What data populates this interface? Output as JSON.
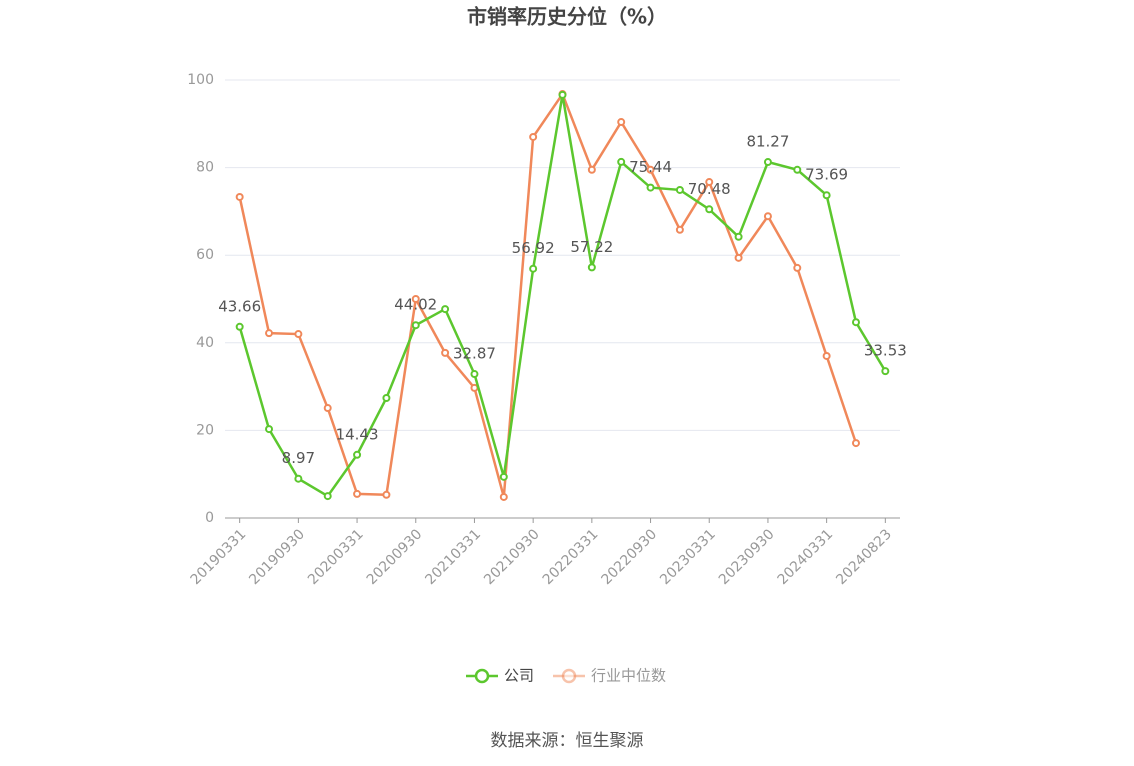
{
  "chart_data": {
    "type": "line",
    "title": "市销率历史分位（%）",
    "source": "数据来源：恒生聚源",
    "categories": [
      "20190331",
      null,
      "20190930",
      null,
      "20200331",
      null,
      "20200930",
      null,
      "20210331",
      null,
      "20210930",
      null,
      "20220331",
      null,
      "20220930",
      null,
      "20230331",
      null,
      "20230930",
      null,
      "20240331",
      null,
      "20240823"
    ],
    "series": [
      {
        "name": "公司",
        "color": "#5cc72e",
        "values": [
          43.66,
          20.3,
          8.97,
          5.0,
          14.43,
          27.4,
          44.02,
          47.7,
          32.87,
          9.4,
          56.92,
          96.6,
          57.22,
          81.3,
          75.44,
          74.9,
          70.48,
          64.2,
          81.27,
          79.5,
          73.69,
          44.7,
          33.53
        ],
        "value_labels": [
          "43.66",
          null,
          "8.97",
          null,
          "14.43",
          null,
          "44.02",
          null,
          "32.87",
          null,
          "56.92",
          null,
          "57.22",
          null,
          "75.44",
          null,
          "70.48",
          null,
          "81.27",
          null,
          "73.69",
          null,
          "33.53"
        ]
      },
      {
        "name": "行业中位数",
        "color": "#f0885a",
        "values": [
          73.3,
          42.2,
          42.0,
          25.1,
          5.5,
          5.3,
          50.0,
          37.7,
          29.7,
          4.8,
          87.0,
          96.8,
          79.5,
          90.4,
          79.5,
          65.8,
          76.7,
          59.4,
          68.9,
          57.1,
          37.0,
          17.1,
          null
        ]
      }
    ],
    "ylim": [
      0,
      100
    ],
    "yticks": [
      0,
      20,
      40,
      60,
      80,
      100
    ],
    "grid": true,
    "legend": "bottom"
  }
}
